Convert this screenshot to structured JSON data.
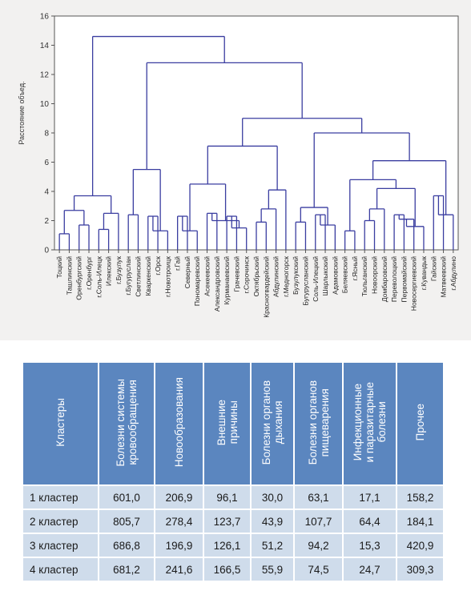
{
  "chart_data": {
    "type": "dendrogram",
    "ylabel": "Расстояние объед.",
    "ylim": [
      0,
      16
    ],
    "yticks": [
      0,
      2,
      4,
      6,
      8,
      10,
      12,
      14,
      16
    ],
    "leaves": [
      "Тоцкий",
      "Ташлинский",
      "Оренбургский",
      "г.Оренбург",
      "г.Соль-Илецк",
      "Илекский",
      "г.Бузулук",
      "г.Бугуруслан",
      "Светлинский",
      "Кваркенский",
      "г.Орск",
      "г.Новотроицк",
      "г.Гай",
      "Северный",
      "Пономаревский",
      "Асекеевский",
      "Александровский",
      "Курманаевский",
      "Грачевский",
      "г.Сорочинск",
      "Октябрьский",
      "Красногвардейский",
      "Абдулинский",
      "г.Медногорск",
      "Бузулукский",
      "Бугурусланский",
      "Соль-Илецкий",
      "Шарлыкский",
      "Адамовский",
      "Беляевский",
      "г.Ясный",
      "Тюльганский",
      "Новоорский",
      "Домбаровский",
      "Переволоцкий",
      "Первомайский",
      "Новосергиевский",
      "г.Кувандык",
      "Гайский",
      "Матвеевский",
      "г.Абдулино"
    ],
    "merges": [
      {
        "a": "L0",
        "b": "L1",
        "h": 1.1
      },
      {
        "a": "L2",
        "b": "L3",
        "h": 1.7
      },
      {
        "a": "M0",
        "b": "M1",
        "h": 2.7
      },
      {
        "a": "L4",
        "b": "L5",
        "h": 1.4
      },
      {
        "a": "M3",
        "b": "L6",
        "h": 2.5
      },
      {
        "a": "M2",
        "b": "M4",
        "h": 3.7
      },
      {
        "a": "L7",
        "b": "L8",
        "h": 2.4
      },
      {
        "a": "L9",
        "b": "L10",
        "h": 2.3
      },
      {
        "a": "M7",
        "b": "L11",
        "h": 1.3
      },
      {
        "a": "M6",
        "b": "M8",
        "h": 5.5
      },
      {
        "a": "L12",
        "b": "L13",
        "h": 2.3
      },
      {
        "a": "M10",
        "b": "L14",
        "h": 1.3
      },
      {
        "a": "L15",
        "b": "L16",
        "h": 2.5
      },
      {
        "a": "L17",
        "b": "L18",
        "h": 2.3
      },
      {
        "a": "M13",
        "b": "L19",
        "h": 1.5
      },
      {
        "a": "M12",
        "b": "M14",
        "h": 2.0
      },
      {
        "a": "M11",
        "b": "M15",
        "h": 4.5
      },
      {
        "a": "L20",
        "b": "L21",
        "h": 1.9
      },
      {
        "a": "M17",
        "b": "L22",
        "h": 2.8
      },
      {
        "a": "M18",
        "b": "L23",
        "h": 4.1
      },
      {
        "a": "M16",
        "b": "M19",
        "h": 7.1
      },
      {
        "a": "L24",
        "b": "L25",
        "h": 1.9
      },
      {
        "a": "L26",
        "b": "L27",
        "h": 2.4
      },
      {
        "a": "M22",
        "b": "L28",
        "h": 1.7
      },
      {
        "a": "M21",
        "b": "M23",
        "h": 2.9
      },
      {
        "a": "L29",
        "b": "L30",
        "h": 1.3
      },
      {
        "a": "L31",
        "b": "L32",
        "h": 2.0
      },
      {
        "a": "M26",
        "b": "L33",
        "h": 2.8
      },
      {
        "a": "L34",
        "b": "L35",
        "h": 2.4
      },
      {
        "a": "M28",
        "b": "L36",
        "h": 2.1
      },
      {
        "a": "M29",
        "b": "L37",
        "h": 1.6
      },
      {
        "a": "M27",
        "b": "M30",
        "h": 4.2
      },
      {
        "a": "M25",
        "b": "M31",
        "h": 4.8
      },
      {
        "a": "L38",
        "b": "L39",
        "h": 3.7
      },
      {
        "a": "M33",
        "b": "L40",
        "h": 2.4
      },
      {
        "a": "M32",
        "b": "M34",
        "h": 6.1
      },
      {
        "a": "M24",
        "b": "M35",
        "h": 8.0
      },
      {
        "a": "M20",
        "b": "M36",
        "h": 9.0
      },
      {
        "a": "M9",
        "b": "M37",
        "h": 12.8
      },
      {
        "a": "M5",
        "b": "M38",
        "h": 14.6
      }
    ],
    "color": "#3a3da0"
  },
  "table": {
    "headers": [
      "Кластеры",
      "Болезни системы кровообращения",
      "Новообразования",
      "Внешние причины",
      "Болезни органов дыхания",
      "Болезни органов пищеварения",
      "Инфекционные и паразитарные болезни",
      "Прочее"
    ],
    "headers_lines": [
      [
        "Кластеры"
      ],
      [
        "Болезни системы",
        "кровообращения"
      ],
      [
        "Новообразования"
      ],
      [
        "Внешние",
        "причины"
      ],
      [
        "Болезни органов",
        "дыхания"
      ],
      [
        "Болезни органов",
        "пищеварения"
      ],
      [
        "Инфекционные",
        "и паразитарные",
        "болезни"
      ],
      [
        "Прочее"
      ]
    ],
    "rows": [
      [
        "1 кластер",
        "601,0",
        "206,9",
        "96,1",
        "30,0",
        "63,1",
        "17,1",
        "158,2"
      ],
      [
        "2 кластер",
        "805,7",
        "278,4",
        "123,7",
        "43,9",
        "107,7",
        "64,4",
        "184,1"
      ],
      [
        "3 кластер",
        "686,8",
        "196,9",
        "126,1",
        "51,2",
        "94,2",
        "15,3",
        "420,9"
      ],
      [
        "4 кластер",
        "681,2",
        "241,6",
        "166,5",
        "55,9",
        "74,5",
        "24,7",
        "309,3"
      ]
    ],
    "header_color": "#5b86bf",
    "cell_color": "#cfdceb"
  }
}
